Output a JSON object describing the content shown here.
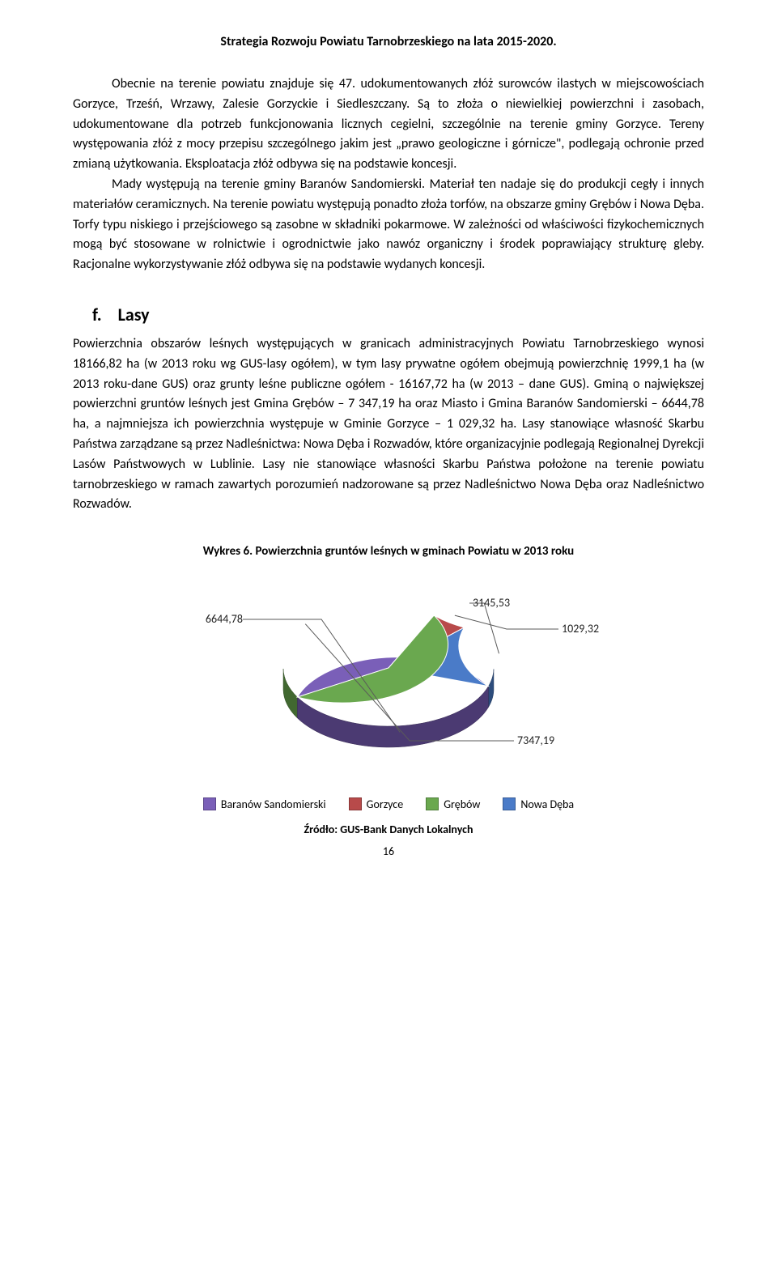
{
  "header": {
    "title": "Strategia Rozwoju Powiatu Tarnobrzeskiego na lata 2015-2020."
  },
  "body": {
    "paragraph1": "Obecnie na terenie powiatu znajduje się 47. udokumentowanych złóż surowców ilastych w miejscowościach Gorzyce, Trześń, Wrzawy, Zalesie Gorzyckie i Siedleszczany. Są to złoża o niewielkiej powierzchni i zasobach, udokumentowane dla potrzeb funkcjonowania licznych cegielni, szczególnie na terenie gminy Gorzyce. Tereny występowania złóż z mocy przepisu szczególnego jakim jest „prawo geologiczne i górnicze\", podlegają ochronie przed zmianą użytkowania. Eksploatacja złóż odbywa się na podstawie koncesji.",
    "paragraph2": "Mady występują na terenie gminy Baranów Sandomierski. Materiał ten nadaje się do produkcji cegły i innych materiałów ceramicznych. Na terenie powiatu występują ponadto złoża torfów, na obszarze gminy Grębów i Nowa Dęba. Torfy typu niskiego i przejściowego są zasobne w składniki pokarmowe. W zależności od właściwości fizykochemicznych mogą być stosowane w rolnictwie i ogrodnictwie jako nawóz organiczny i środek poprawiający strukturę gleby. Racjonalne wykorzystywanie złóż odbywa się na podstawie wydanych koncesji.",
    "section_letter": "f.",
    "section_title": "Lasy",
    "paragraph3": "Powierzchnia obszarów leśnych występujących w granicach administracyjnych Powiatu Tarnobrzeskiego wynosi 18166,82 ha (w 2013 roku wg GUS-lasy ogółem), w tym lasy prywatne ogółem obejmują powierzchnię 1999,1 ha (w 2013 roku-dane GUS) oraz grunty leśne publiczne ogółem - 16167,72 ha (w 2013 – dane GUS). Gminą o największej powierzchni gruntów leśnych jest Gmina Grębów – 7 347,19 ha oraz Miasto i Gmina Baranów Sandomierski – 6644,78 ha, a najmniejsza ich powierzchnia występuje w Gminie Gorzyce – 1 029,32 ha. Lasy stanowiące własność Skarbu Państwa zarządzane są przez Nadleśnictwa: Nowa Dęba i Rozwadów, które organizacyjnie podlegają Regionalnej Dyrekcji Lasów Państwowych w Lublinie. Lasy nie stanowiące własności Skarbu Państwa położone na terenie powiatu tarnobrzeskiego w ramach zawartych porozumień nadzorowane są przez Nadleśnictwo Nowa Dęba oraz Nadleśnictwo Rozwadów."
  },
  "chart": {
    "caption": "Wykres 6. Powierzchnia gruntów leśnych w gminach Powiatu w 2013 roku",
    "type": "pie-3d",
    "background_color": "#ffffff",
    "label_fontsize": 14,
    "label_color": "#1f1f1f",
    "slices": [
      {
        "label": "Baranów Sandomierski",
        "value": 6644.78,
        "display": "6644,78",
        "color": "#7a5fb8"
      },
      {
        "label": "Nowa Dęba",
        "value": 3145.53,
        "display": "3145,53",
        "color": "#4a7bc8"
      },
      {
        "label": "Gorzyce",
        "value": 1029.32,
        "display": "1029,32",
        "color": "#b84a4a"
      },
      {
        "label": "Grębów",
        "value": 7347.19,
        "display": "7347,19",
        "color": "#6aa84f"
      }
    ],
    "legend_items": [
      {
        "label": "Baranów Sandomierski",
        "color": "#7a5fb8"
      },
      {
        "label": "Gorzyce",
        "color": "#b84a4a"
      },
      {
        "label": "Grębów",
        "color": "#6aa84f"
      },
      {
        "label": "Nowa Dęba",
        "color": "#4a7bc8"
      }
    ],
    "source": "Źródło:  GUS-Bank Danych Lokalnych"
  },
  "footer": {
    "page_number": "16"
  }
}
